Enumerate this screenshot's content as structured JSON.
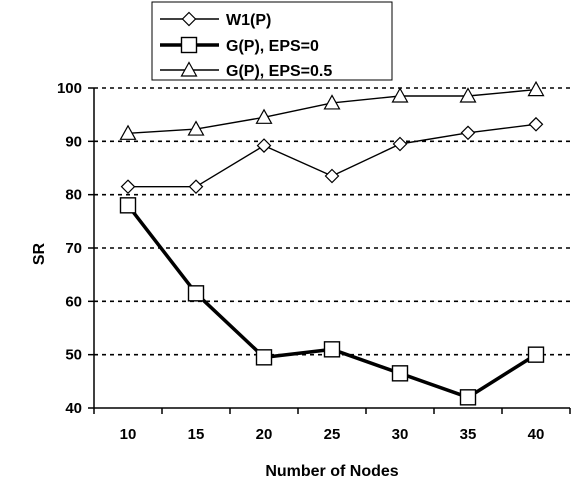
{
  "chart_data": {
    "type": "line",
    "title": "",
    "xlabel": "Number of Nodes",
    "ylabel": "SR",
    "x": [
      10,
      15,
      20,
      25,
      30,
      35,
      40
    ],
    "ylim": [
      40,
      100
    ],
    "yticks": [
      40,
      50,
      60,
      70,
      80,
      90,
      100
    ],
    "grid": "horizontal dashed",
    "legend_position": "top",
    "series": [
      {
        "name": "W1(P)",
        "marker": "diamond",
        "line": "thin",
        "values": [
          81.5,
          81.5,
          89.2,
          83.5,
          89.5,
          91.6,
          93.2
        ]
      },
      {
        "name": "G(P), EPS=0",
        "marker": "square",
        "line": "thick",
        "values": [
          78,
          61.5,
          49.5,
          51,
          46.5,
          42,
          50
        ]
      },
      {
        "name": "G(P), EPS=0.5",
        "marker": "triangle",
        "line": "thin",
        "values": [
          91.5,
          92.3,
          94.5,
          97.2,
          98.5,
          98.5,
          99.7
        ]
      }
    ]
  }
}
